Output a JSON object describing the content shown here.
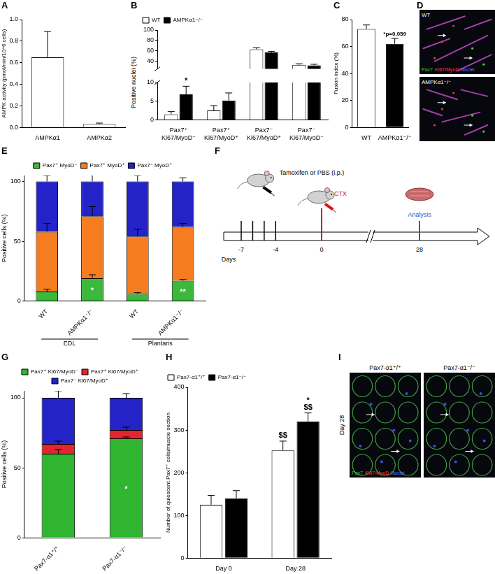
{
  "chart_data": [
    {
      "panel": "A",
      "type": "bar",
      "categories": [
        "AMPKα1",
        "AMPKα2"
      ],
      "values": [
        0.65,
        0.03
      ],
      "errors": [
        0.24,
        0.01
      ],
      "color": "#ffffff",
      "y_label": "AMPK activity (pmol/min/10^6 cells)",
      "ylim": [
        0,
        1
      ],
      "yticks": [
        {
          "value": 0,
          "label": "0.0"
        },
        0.2,
        0.4,
        0.6,
        0.8,
        {
          "value": 1,
          "label": "1.0"
        }
      ],
      "grid": false
    },
    {
      "panel": "B",
      "type": "bar",
      "categories": [
        "Pax7⁺ Ki67/MyoD⁻",
        "Pax7⁺ Ki67/MyoD⁺",
        "Pax7⁻ Ki67/MyoD⁺",
        "Pax7⁻ Ki67/MyoD⁻"
      ],
      "series": [
        {
          "name": "WT",
          "color": "#ffffff",
          "values": [
            1.5,
            2.5,
            63,
            33
          ],
          "errors": [
            0.7,
            1.3,
            3,
            2
          ]
        },
        {
          "name": "AMPKα1⁻/⁻",
          "color": "#000000",
          "values": [
            6.8,
            5.2,
            57,
            32
          ],
          "errors": [
            2.2,
            2,
            2,
            2
          ]
        }
      ],
      "y_label": "Positive nuclei (%)",
      "ylim": [
        0,
        100
      ],
      "ybreak": [
        10,
        25
      ],
      "yticks": [
        0,
        5,
        10,
        40,
        60,
        80,
        100
      ],
      "legend": "top-left",
      "grid": false,
      "annotations": [
        {
          "series": 1,
          "index": 0,
          "text": "*"
        }
      ]
    },
    {
      "panel": "C",
      "type": "bar",
      "categories": [
        "WT",
        "AMPKα1⁻/⁻"
      ],
      "values": [
        73,
        62
      ],
      "errors": [
        3,
        4
      ],
      "colors": [
        "#ffffff",
        "#000000"
      ],
      "y_label": "Fusion index (%)",
      "ylim": [
        0,
        80
      ],
      "yticks": [
        0,
        20,
        40,
        60,
        80
      ],
      "grid": false,
      "annotations": [
        {
          "index": 1,
          "text": "*p=0.059"
        }
      ]
    },
    {
      "panel": "E",
      "type": "bar",
      "stacked": true,
      "categories": [
        "WT",
        "AMPKα1⁻/⁻",
        "WT",
        "AMPKα1⁻/⁻"
      ],
      "groups": [
        "EDL",
        "Plantaris"
      ],
      "series": [
        {
          "name": "Pax7⁺ MyoD⁻",
          "color": "#3cb83c",
          "values": [
            8,
            19,
            6,
            17
          ],
          "errors": [
            2,
            3,
            1,
            1
          ]
        },
        {
          "name": "Pax7⁺ MyoD⁺",
          "color": "#f57c1f",
          "values": [
            50,
            52,
            48,
            45
          ],
          "errors": [
            7,
            8,
            6,
            3
          ]
        },
        {
          "name": "Pax7⁻ MyoD⁺",
          "color": "#2323c8",
          "values": [
            42,
            29,
            46,
            38
          ],
          "errors": [
            5,
            10,
            5,
            3
          ]
        }
      ],
      "y_label": "Positive cells (%)",
      "ylim": [
        0,
        105
      ],
      "yticks": [
        0,
        50,
        100
      ],
      "legend": "top",
      "grid": false,
      "annotations": [
        {
          "series": 0,
          "index": 1,
          "text": "*"
        },
        {
          "series": 0,
          "index": 3,
          "text": "**"
        }
      ]
    },
    {
      "panel": "G",
      "type": "bar",
      "stacked": true,
      "categories": [
        "Pax7-α1⁺/⁺",
        "Pax7-α1⁻/⁻"
      ],
      "series": [
        {
          "name": "Pax7⁺ Ki67/MyoD⁻",
          "color": "#2fb52f",
          "values": [
            60,
            71
          ],
          "errors": [
            3,
            1
          ]
        },
        {
          "name": "Pax7⁺ Ki67/MyoD⁺",
          "color": "#e3262d",
          "values": [
            7,
            6
          ],
          "errors": [
            2,
            2
          ]
        },
        {
          "name": "Pax7⁻ Ki67/MyoD⁺",
          "color": "#2323c8",
          "values": [
            33,
            23
          ],
          "errors": [
            5,
            3
          ]
        }
      ],
      "y_label": "Positive cells (%)",
      "ylim": [
        0,
        105
      ],
      "yticks": [
        0,
        50,
        100
      ],
      "legend": "top",
      "grid": false,
      "annotations": [
        {
          "series": 0,
          "index": 1,
          "text": "*"
        }
      ]
    },
    {
      "panel": "H",
      "type": "bar",
      "categories": [
        "Day 0",
        "Day 28"
      ],
      "series": [
        {
          "name": "Pax7-α1⁺/⁺",
          "color": "#ffffff",
          "values": [
            125,
            252
          ],
          "errors": [
            22,
            22
          ]
        },
        {
          "name": "Pax7-α1⁻/⁻",
          "color": "#000000",
          "values": [
            140,
            320
          ],
          "errors": [
            18,
            20
          ]
        }
      ],
      "y_label": "Number of quiescent Pax7⁺ cells/muscle section",
      "ylim": [
        0,
        400
      ],
      "yticks": [
        0,
        100,
        200,
        300,
        400
      ],
      "legend": "top-left",
      "grid": false,
      "annotations": [
        {
          "series": 0,
          "index": 1,
          "text": "$$"
        },
        {
          "series": 1,
          "index": 1,
          "text": "$$"
        },
        {
          "series": 1,
          "index": 1,
          "text": "*"
        }
      ]
    }
  ],
  "images": [
    {
      "panel": "D",
      "images": [
        {
          "label": "WT"
        },
        {
          "label": "AMPKα1⁻/⁻"
        }
      ],
      "stain_legend": [
        {
          "text": "Pax7",
          "color": "#33cc33"
        },
        {
          "text": "Ki67/MyoD",
          "color": "#ff3b3b"
        },
        {
          "text": "Nuclei",
          "color": "#5a78ff"
        }
      ]
    },
    {
      "panel": "I",
      "side_label": "Day 28",
      "images": [
        {
          "label": "Pax7-α1⁺/⁺"
        },
        {
          "label": "Pax7-α1⁻/⁻"
        }
      ],
      "stain_legend": [
        {
          "text": "Pax7",
          "color": "#33cc33"
        },
        {
          "text": "Ki67/MyoD",
          "color": "#ff3b3b"
        },
        {
          "text": "Nuclei",
          "color": "#5a78ff"
        }
      ]
    }
  ],
  "diagram": {
    "panel": "F",
    "axis_label": "Days",
    "injection_label": "Tamoxifen or PBS (i.p.)",
    "injury_label": "CTX",
    "analysis_label": "Analysis",
    "injection_days": [
      -7,
      -6,
      -5,
      -4
    ],
    "injury_day": 0,
    "analysis_day": 28,
    "labeled_days": [
      -7,
      -4,
      0,
      28
    ]
  }
}
